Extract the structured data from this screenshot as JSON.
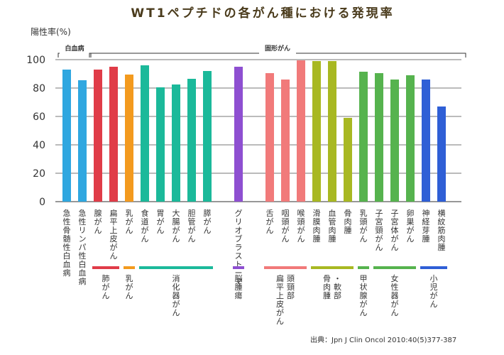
{
  "chart_data": {
    "type": "bar",
    "title": "WT1ペプチドの各がん種における発現率",
    "ylabel": "陽性率(%)",
    "ylim": [
      0,
      100
    ],
    "yticks": [
      0,
      20,
      40,
      60,
      80,
      100
    ],
    "grid": true,
    "groups": [
      {
        "name": "白血病",
        "span": [
          0,
          1
        ]
      },
      {
        "name": "固形がん",
        "span": [
          2,
          25
        ]
      }
    ],
    "categories": [
      {
        "label": "急性骨髄性白血病",
        "value": 93,
        "color": "#2fa7e0"
      },
      {
        "label": "急性リンパ性白血病",
        "value": 85.5,
        "color": "#2fa7e0"
      },
      {
        "label": "腺がん",
        "value": 93,
        "color": "#e03c48"
      },
      {
        "label": "扁平上皮がん",
        "value": 95,
        "color": "#e03c48"
      },
      {
        "label": "乳がん",
        "value": 89.5,
        "color": "#f39a1e"
      },
      {
        "label": "食道がん",
        "value": 96,
        "color": "#1bb99a"
      },
      {
        "label": "胃がん",
        "value": 80.5,
        "color": "#1bb99a"
      },
      {
        "label": "大腸がん",
        "value": 82.5,
        "color": "#1bb99a"
      },
      {
        "label": "胆管がん",
        "value": 86.5,
        "color": "#1bb99a"
      },
      {
        "label": "膵がん",
        "value": 92,
        "color": "#1bb99a"
      },
      {
        "label": "",
        "value": null,
        "color": ""
      },
      {
        "label": "グリオブラストーマ",
        "value": 95,
        "color": "#8e4fd1"
      },
      {
        "label": "",
        "value": null,
        "color": ""
      },
      {
        "label": "舌がん",
        "value": 90.5,
        "color": "#f17a7a"
      },
      {
        "label": "咽頭がん",
        "value": 86,
        "color": "#f17a7a"
      },
      {
        "label": "喉頭がん",
        "value": 99.5,
        "color": "#f17a7a"
      },
      {
        "label": "滑膜肉腫",
        "value": 99,
        "color": "#a8b822"
      },
      {
        "label": "血管肉腫",
        "value": 99,
        "color": "#a8b822"
      },
      {
        "label": "骨肉腫",
        "value": 59,
        "color": "#a8b822"
      },
      {
        "label": "乳頭がん",
        "value": 91.5,
        "color": "#56b34e"
      },
      {
        "label": "子宮頸がん",
        "value": 90.5,
        "color": "#56b34e"
      },
      {
        "label": "子宮体がん",
        "value": 86,
        "color": "#56b34e"
      },
      {
        "label": "卵巣がん",
        "value": 89,
        "color": "#56b34e"
      },
      {
        "label": "神経芽腫",
        "value": 86,
        "color": "#2f5fd6"
      },
      {
        "label": "横紋筋肉腫",
        "value": 67,
        "color": "#2f5fd6"
      }
    ],
    "subgroups": [
      {
        "label": "肺がん",
        "from": 2,
        "to": 3,
        "color": "#e03c48"
      },
      {
        "label": "乳がん",
        "from": 4,
        "to": 4,
        "color": "#f39a1e"
      },
      {
        "label": "消化器がん",
        "from": 5,
        "to": 9,
        "color": "#1bb99a"
      },
      {
        "label": "脳腫瘍",
        "from": 11,
        "to": 11,
        "color": "#8e4fd1"
      },
      {
        "label": "頭頸部扁平上皮がん",
        "from": 13,
        "to": 15,
        "color": "#f17a7a",
        "lines": [
          "頭頸部",
          "扁平上皮がん"
        ]
      },
      {
        "label": "軟部・骨肉腫",
        "from": 16,
        "to": 18,
        "color": "#a8b822",
        "lines": [
          "・軟部",
          "骨肉腫"
        ]
      },
      {
        "label": "甲状腺がん",
        "from": 19,
        "to": 19,
        "color": "#56b34e"
      },
      {
        "label": "女性器がん",
        "from": 20,
        "to": 22,
        "color": "#56b34e"
      },
      {
        "label": "小児がん",
        "from": 23,
        "to": 24,
        "color": "#2f5fd6"
      }
    ],
    "source": "出典：Jpn J Clin Oncol 2010:40(5)377-387"
  }
}
